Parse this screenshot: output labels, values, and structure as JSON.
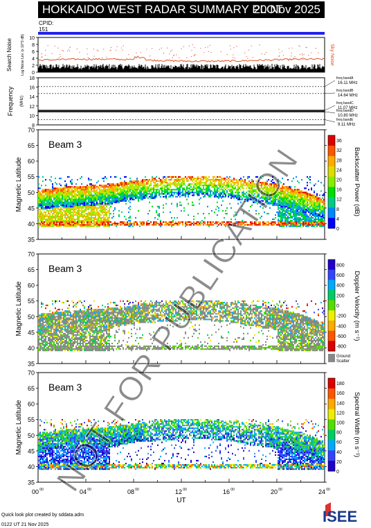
{
  "header": {
    "title": "HOKKAIDO WEST RADAR SUMMARY PLOT",
    "date": "20 Nov 2025"
  },
  "cpid": {
    "label": "CPID:",
    "value": "151"
  },
  "noise_panel": {
    "ylabel": "Search Noise",
    "ylabel_sub": "Log Noise Lev. (x 10^3 dB)",
    "right_label": "Sky Noise",
    "ticks": [
      "0",
      "2",
      "4",
      "6",
      "8",
      "10"
    ]
  },
  "freq_panel": {
    "ylabel": "Frequency",
    "ylabel_sub": "(MHz)",
    "ticks": [
      "8",
      "10",
      "12",
      "14",
      "16",
      "18"
    ],
    "bands": [
      {
        "label": "freq bandA",
        "value": "16.11 MHz"
      },
      {
        "label": "freq bandB",
        "value": "14.64 MHz"
      },
      {
        "label": "freq bandC",
        "value": "11.07 MHz"
      },
      {
        "label": "freq bandD",
        "value": "10.80 MHz"
      },
      {
        "label": "freq bandE",
        "value": "9.11 MHz"
      }
    ]
  },
  "panels": [
    {
      "beam_label": "Beam  3",
      "ylabel": "Magnetic Latitude",
      "colorbar_label": "Backscatter Power (dB)",
      "colorbar_ticks": [
        "0",
        "4",
        "8",
        "12",
        "16",
        "20",
        "24",
        "28",
        "32",
        "36"
      ],
      "ground_scatter": false
    },
    {
      "beam_label": "Beam  3",
      "ylabel": "Magnetic Latitude",
      "colorbar_label": "Doppler Velocity (m s⁻¹)",
      "colorbar_ticks": [
        "800",
        "600",
        "400",
        "200",
        "0",
        "-200",
        "-400",
        "-600",
        "-800"
      ],
      "ground_scatter": true,
      "ground_label_1": "Ground",
      "ground_label_2": "Scatter"
    },
    {
      "beam_label": "Beam  3",
      "ylabel": "Magnetic Latitude",
      "colorbar_label": "Spectral Width (m s⁻¹)",
      "colorbar_ticks": [
        "0",
        "20",
        "40",
        "60",
        "80",
        "100",
        "120",
        "140",
        "160",
        "180"
      ],
      "ground_scatter": false
    }
  ],
  "lat_ticks": [
    "35",
    "40",
    "45",
    "50",
    "55",
    "60",
    "65",
    "70"
  ],
  "x_axis": {
    "ticks": [
      "00",
      "04",
      "08",
      "12",
      "16",
      "20",
      "24"
    ],
    "tick_sup": "00",
    "label": "UT"
  },
  "footer": {
    "line1": "Quick look plot created by sddata.adm",
    "line2": "0122 UT 21 Nov 2025"
  },
  "logo": {
    "text": "ISEE"
  },
  "watermark": {
    "text": "NOT FOR PUBLICATION"
  },
  "chart_data": {
    "type": "heatmap",
    "x_unit": "UT hours",
    "xlim": [
      0,
      24
    ],
    "ylim": [
      35,
      70
    ],
    "colorscales": {
      "power": [
        "#0000ff",
        "#0088ff",
        "#00cc88",
        "#00dd00",
        "#88ee00",
        "#dddd00",
        "#ffaa00",
        "#ff5500",
        "#dd0000"
      ],
      "velocity": [
        "#2200cc",
        "#3344ff",
        "#00aaff",
        "#00cc66",
        "#55dd00",
        "#eeee00",
        "#ffaa00",
        "#ff5500",
        "#dd0000"
      ],
      "width": [
        "#2200cc",
        "#3344ff",
        "#00aaff",
        "#00cc66",
        "#55dd00",
        "#eeee00",
        "#ffaa00",
        "#ff5500",
        "#dd0000"
      ],
      "ground": "#888888"
    },
    "noise": {
      "ylim": [
        0,
        10
      ],
      "sky_noise_baseline": 3.2,
      "search_noise_baseline": 0.8
    },
    "frequency": {
      "ylim": [
        8,
        18
      ],
      "operating": [
        11.07,
        10.8
      ],
      "bands": [
        16.11,
        14.64,
        11.07,
        10.8,
        9.11
      ]
    },
    "scatter_boundary": {
      "description_ut": [
        0,
        2,
        4,
        6,
        8,
        10,
        12,
        14,
        16,
        18,
        20,
        22,
        24
      ],
      "upper_lat": [
        49,
        50,
        50.5,
        51,
        52,
        53,
        53.5,
        53.5,
        53,
        52,
        51,
        49,
        46
      ],
      "lower_lat": [
        45,
        45.5,
        46,
        46.5,
        48,
        48.5,
        49,
        49,
        48.5,
        47,
        46,
        44,
        42
      ]
    }
  }
}
